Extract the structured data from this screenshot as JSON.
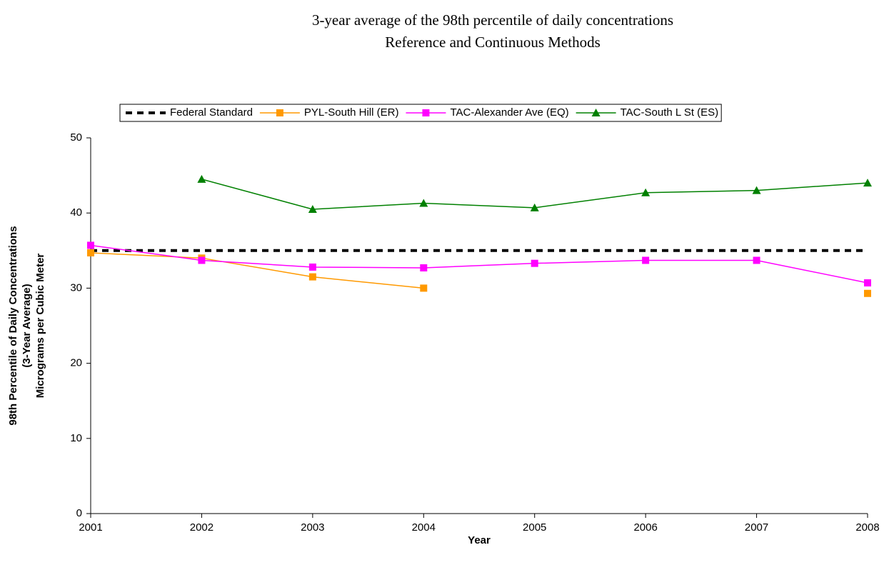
{
  "chart_data": {
    "type": "line",
    "title": "3-year average of the 98th percentile of daily concentrations",
    "subtitle": "Reference and Continuous Methods",
    "x_label": "Year",
    "y_label": [
      "98th Percentile of Daily Concentrations",
      "(3-Year Average)",
      "Micrograms per Cubic Meter"
    ],
    "x": [
      2001,
      2002,
      2003,
      2004,
      2005,
      2006,
      2007,
      2008
    ],
    "xlim": [
      2001,
      2008
    ],
    "xticks": [
      2001,
      2002,
      2003,
      2004,
      2005,
      2006,
      2007,
      2008
    ],
    "ylim": [
      0,
      50
    ],
    "yticks": [
      0,
      10,
      20,
      30,
      40,
      50
    ],
    "grid": false,
    "legend": "top",
    "series": [
      {
        "name": "Federal Standard",
        "color": "#000000",
        "dashed": true,
        "marker": "none",
        "values": [
          35,
          35,
          35,
          35,
          35,
          35,
          35,
          35
        ]
      },
      {
        "name": "PYL-South Hill (ER)",
        "color": "#ff9900",
        "dashed": false,
        "marker": "square",
        "values": [
          34.7,
          34.0,
          31.5,
          30.0,
          null,
          null,
          null,
          29.3
        ]
      },
      {
        "name": "TAC-Alexander Ave (EQ)",
        "color": "#ff00ff",
        "dashed": false,
        "marker": "square",
        "values": [
          35.7,
          33.7,
          32.8,
          32.7,
          33.3,
          33.7,
          33.7,
          30.7
        ]
      },
      {
        "name": "TAC-South L St (ES)",
        "color": "#008000",
        "dashed": false,
        "marker": "triangle",
        "values": [
          null,
          44.5,
          40.5,
          41.3,
          40.7,
          42.7,
          43.0,
          44.0
        ]
      }
    ]
  }
}
